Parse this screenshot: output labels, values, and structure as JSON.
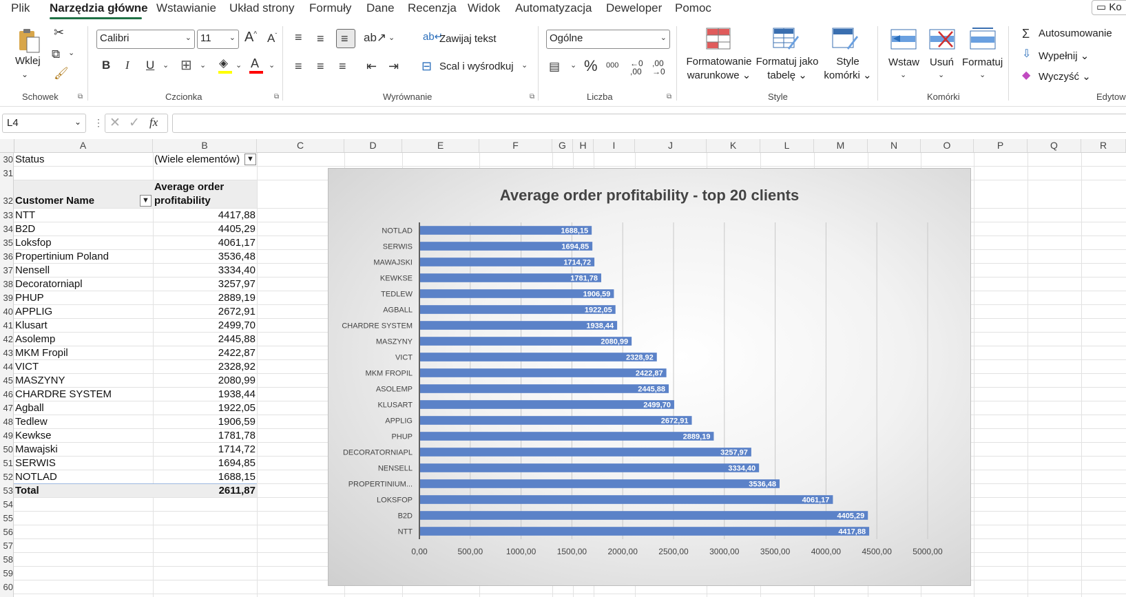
{
  "menu": {
    "items": [
      "Plik",
      "Narzędzia główne",
      "Wstawianie",
      "Układ strony",
      "Formuły",
      "Dane",
      "Recenzja",
      "Widok",
      "Automatyzacja",
      "Deweloper",
      "Pomoc"
    ],
    "active": "Narzędzia główne",
    "comments_label": "Ko"
  },
  "ribbon": {
    "groups": {
      "schowek": "Schowek",
      "czcionka": "Czcionka",
      "wyrownanie": "Wyrównanie",
      "liczba": "Liczba",
      "style": "Style",
      "komorki": "Komórki",
      "edytowanie": "Edytow"
    },
    "paste_label": "Wklej",
    "font_name": "Calibri",
    "font_size": "11",
    "wrap_text": "Zawijaj tekst",
    "merge_center": "Scal i wyśrodkuj",
    "number_format": "Ogólne",
    "conditional_formatting": [
      "Formatowanie",
      "warunkowe"
    ],
    "format_as_table": [
      "Formatuj jako",
      "tabelę"
    ],
    "cell_styles": [
      "Style",
      "komórki"
    ],
    "insert": "Wstaw",
    "delete": "Usuń",
    "format": "Formatuj",
    "autosum": "Autosumowanie",
    "fill": "Wypełnij",
    "clear": "Wyczyść",
    "bold": "B",
    "italic": "I",
    "underline": "U",
    "percent": "%",
    "thousands": "000",
    "increase_font": "A",
    "decrease_font": "A",
    "accent_color": "#1e7145",
    "highlight_color": "#ffff00",
    "font_color": "#ff0000"
  },
  "formula_bar": {
    "name_box": "L4",
    "fx_label": "fx",
    "formula": ""
  },
  "columns": [
    "A",
    "B",
    "C",
    "D",
    "E",
    "F",
    "G",
    "H",
    "I",
    "J",
    "K",
    "L",
    "M",
    "N",
    "O",
    "P",
    "Q",
    "R"
  ],
  "rows": [
    "30",
    "31",
    "32",
    "33",
    "34",
    "35",
    "36",
    "37",
    "38",
    "39",
    "40",
    "41",
    "42",
    "43",
    "44",
    "45",
    "46",
    "47",
    "48",
    "49",
    "50",
    "51",
    "52",
    "53",
    "54",
    "55",
    "56",
    "57",
    "58",
    "59",
    "60"
  ],
  "pivot": {
    "filter_label": "Status",
    "filter_value": "(Wiele elementów)",
    "header_customer": "Customer Name",
    "header_value_line1": "Average order",
    "header_value_line2": "profitability",
    "rows": [
      {
        "name": "NTT",
        "value": "4417,88"
      },
      {
        "name": "B2D",
        "value": "4405,29"
      },
      {
        "name": "Loksfop",
        "value": "4061,17"
      },
      {
        "name": "Propertinium Poland",
        "value": "3536,48"
      },
      {
        "name": "Nensell",
        "value": "3334,40"
      },
      {
        "name": "Decoratorniapl",
        "value": "3257,97"
      },
      {
        "name": "PHUP",
        "value": "2889,19"
      },
      {
        "name": "APPLIG",
        "value": "2672,91"
      },
      {
        "name": "Klusart",
        "value": "2499,70"
      },
      {
        "name": "Asolemp",
        "value": "2445,88"
      },
      {
        "name": "MKM Fropil",
        "value": "2422,87"
      },
      {
        "name": "VICT",
        "value": "2328,92"
      },
      {
        "name": "MASZYNY",
        "value": "2080,99"
      },
      {
        "name": "CHARDRE SYSTEM",
        "value": "1938,44"
      },
      {
        "name": "Agball",
        "value": "1922,05"
      },
      {
        "name": "Tedlew",
        "value": "1906,59"
      },
      {
        "name": "Kewkse",
        "value": "1781,78"
      },
      {
        "name": "Mawajski",
        "value": "1714,72"
      },
      {
        "name": "SERWIS",
        "value": "1694,85"
      },
      {
        "name": "NOTLAD",
        "value": "1688,15"
      }
    ],
    "total_label": "Total",
    "total_value": "2611,87"
  },
  "chart_data": {
    "type": "bar",
    "orientation": "horizontal",
    "title": "Average order profitability - top 20 clients",
    "categories": [
      "NOTLAD",
      "SERWIS",
      "MAWAJSKI",
      "KEWKSE",
      "TEDLEW",
      "AGBALL",
      "CHARDRE SYSTEM",
      "MASZYNY",
      "VICT",
      "MKM FROPIL",
      "ASOLEMP",
      "KLUSART",
      "APPLIG",
      "PHUP",
      "DECORATORNIAPL",
      "NENSELL",
      "PROPERTINIUM...",
      "LOKSFOP",
      "B2D",
      "NTT"
    ],
    "values": [
      1688.15,
      1694.85,
      1714.72,
      1781.78,
      1906.59,
      1922.05,
      1938.44,
      2080.99,
      2328.92,
      2422.87,
      2445.88,
      2499.7,
      2672.91,
      2889.19,
      3257.97,
      3334.4,
      3536.48,
      4061.17,
      4405.29,
      4417.88
    ],
    "data_labels": [
      "1688,15",
      "1694,85",
      "1714,72",
      "1781,78",
      "1906,59",
      "1922,05",
      "1938,44",
      "2080,99",
      "2328,92",
      "2422,87",
      "2445,88",
      "2499,70",
      "2672,91",
      "2889,19",
      "3257,97",
      "3334,40",
      "3536,48",
      "4061,17",
      "4405,29",
      "4417,88"
    ],
    "xlim": [
      0,
      5000
    ],
    "xticks": [
      "0,00",
      "500,00",
      "1000,00",
      "1500,00",
      "2000,00",
      "2500,00",
      "3000,00",
      "3500,00",
      "4000,00",
      "4500,00",
      "5000,00"
    ],
    "grid": true,
    "bar_color": "#5b82c8",
    "xlabel": "",
    "ylabel": ""
  }
}
